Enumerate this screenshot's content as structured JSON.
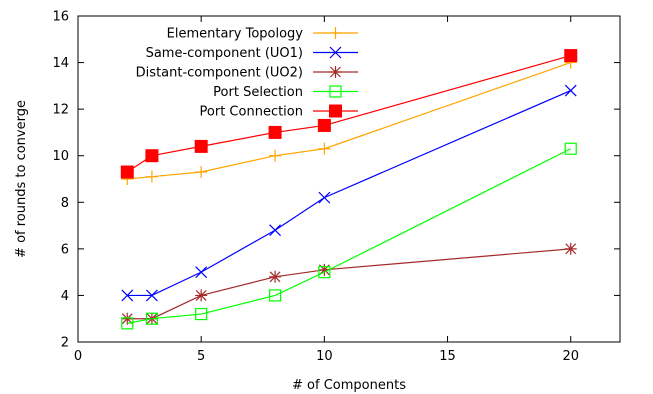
{
  "chart_data": {
    "type": "line",
    "title": "",
    "xlabel": "# of Components",
    "ylabel": "# of rounds to converge",
    "xlim": [
      0,
      22
    ],
    "ylim": [
      2,
      16
    ],
    "x_ticks": [
      0,
      5,
      10,
      15,
      20
    ],
    "y_ticks": [
      2,
      4,
      6,
      8,
      10,
      12,
      14,
      16
    ],
    "x_tick_labels": [
      "0",
      "5",
      "10",
      "15",
      "20"
    ],
    "y_tick_labels": [
      "2",
      "4",
      "6",
      "8",
      "10",
      "12",
      "14",
      "16"
    ],
    "grid": false,
    "legend_position": "top-left",
    "x": [
      2,
      3,
      5,
      8,
      10,
      20
    ],
    "series": [
      {
        "name": "Elementary Topology",
        "color": "#ffa500",
        "marker": "plus",
        "values": [
          9.0,
          9.1,
          9.3,
          10.0,
          10.3,
          14.0
        ]
      },
      {
        "name": "Same-component (UO1)",
        "color": "#0000ff",
        "marker": "cross",
        "values": [
          4.0,
          4.0,
          5.0,
          6.8,
          8.2,
          12.8
        ]
      },
      {
        "name": "Distant-component (UO2)",
        "color": "#a52a2a",
        "marker": "star",
        "values": [
          3.0,
          3.0,
          4.0,
          4.8,
          5.1,
          6.0
        ]
      },
      {
        "name": "Port Selection",
        "color": "#00ff00",
        "marker": "open-square",
        "values": [
          2.8,
          3.0,
          3.2,
          4.0,
          5.0,
          10.3
        ]
      },
      {
        "name": "Port Connection",
        "color": "#ff0000",
        "marker": "filled-square",
        "values": [
          9.3,
          10.0,
          10.4,
          11.0,
          11.3,
          14.3
        ]
      }
    ]
  }
}
